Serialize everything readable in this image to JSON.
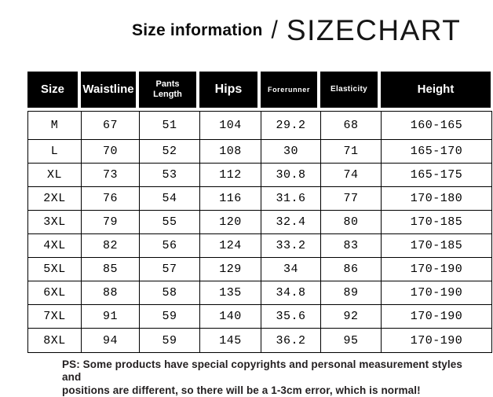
{
  "title": {
    "left": "Size information",
    "separator": "/",
    "right": "SIZECHART"
  },
  "chart_data": {
    "type": "table",
    "title": "Size information / SIZECHART",
    "columns": [
      "Size",
      "Waistline",
      "Pants Length",
      "Hips",
      "Forerunner",
      "Elasticity",
      "Height"
    ],
    "rows": [
      [
        "M",
        "67",
        "51",
        "104",
        "29.2",
        "68",
        "160-165"
      ],
      [
        "L",
        "70",
        "52",
        "108",
        "30",
        "71",
        "165-170"
      ],
      [
        "XL",
        "73",
        "53",
        "112",
        "30.8",
        "74",
        "165-175"
      ],
      [
        "2XL",
        "76",
        "54",
        "116",
        "31.6",
        "77",
        "170-180"
      ],
      [
        "3XL",
        "79",
        "55",
        "120",
        "32.4",
        "80",
        "170-185"
      ],
      [
        "4XL",
        "82",
        "56",
        "124",
        "33.2",
        "83",
        "170-185"
      ],
      [
        "5XL",
        "85",
        "57",
        "129",
        "34",
        "86",
        "170-190"
      ],
      [
        "6XL",
        "88",
        "58",
        "135",
        "34.8",
        "89",
        "170-190"
      ],
      [
        "7XL",
        "91",
        "59",
        "140",
        "35.6",
        "92",
        "170-190"
      ],
      [
        "8XL",
        "94",
        "59",
        "145",
        "36.2",
        "95",
        "170-190"
      ]
    ]
  },
  "footer": {
    "note": "PS: Some products have special copyrights and personal measurement styles and\npositions are different, so there will be a 1-3cm error, which is normal!"
  },
  "colors": {
    "background": "#ffffff",
    "header_bg": "#000000",
    "header_text": "#ffffff",
    "body_text": "#000000",
    "border": "#000000",
    "footer_text": "#231f20"
  }
}
